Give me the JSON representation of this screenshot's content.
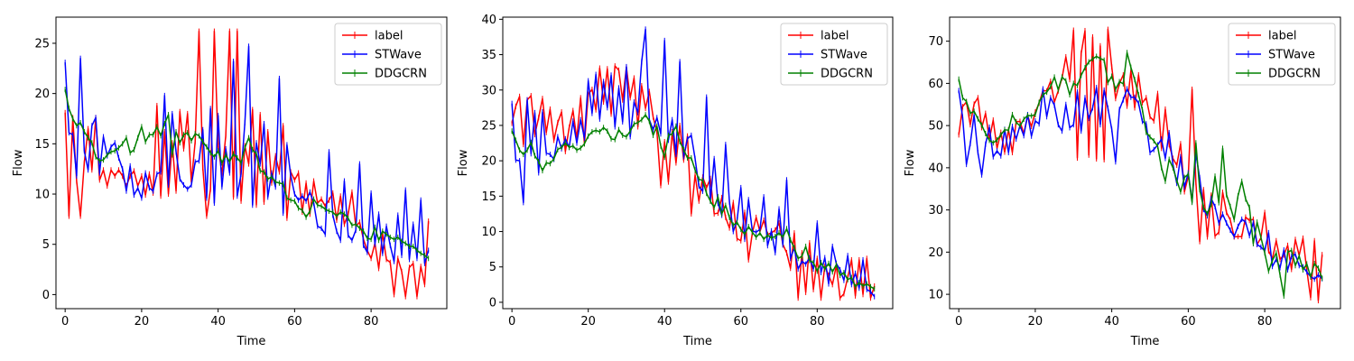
{
  "chart_data": [
    {
      "type": "line",
      "xlabel": "Time",
      "ylabel": "Flow",
      "xlim": [
        -2.4,
        99.8
      ],
      "ylim": [
        -1.4,
        27.6
      ],
      "xticks": [
        0,
        20,
        40,
        60,
        80
      ],
      "yticks": [
        0,
        5,
        10,
        15,
        20,
        25
      ],
      "legend": "top-right",
      "series": [
        {
          "name": "label",
          "color": "#ff0000",
          "x_start": 0,
          "values": [
            18.1,
            7.8,
            17.6,
            11.3,
            7.8,
            13.1,
            16.5,
            12.4,
            17.6,
            11.4,
            12.4,
            10.8,
            12.4,
            11.8,
            12.4,
            11.8,
            10.8,
            11.8,
            12.3,
            10.8,
            11.8,
            9.9,
            12.0,
            10.1,
            18.8,
            9.8,
            16.2,
            10.0,
            15.1,
            10.3,
            18.2,
            14.5,
            18.0,
            11.2,
            15.2,
            26.2,
            12.6,
            7.8,
            10.5,
            26.2,
            14.8,
            12.0,
            15.8,
            26.2,
            9.7,
            26.2,
            9.3,
            14.8,
            13.0,
            18.4,
            8.9,
            17.9,
            9.2,
            16.2,
            11.1,
            13.8,
            12.2,
            16.8,
            7.6,
            12.2,
            11.4,
            12.1,
            8.2,
            11.1,
            8.0,
            11.3,
            9.1,
            9.5,
            8.8,
            9.4,
            10.1,
            7.4,
            9.8,
            7.0,
            8.0,
            10.2,
            6.8,
            7.2,
            5.5,
            4.4,
            3.6,
            5.1,
            2.6,
            6.1,
            3.5,
            3.2,
            0.0,
            3.6,
            2.3,
            -0.2,
            2.7,
            3.1,
            -0.2,
            2.8,
            1.0,
            7.3
          ]
        },
        {
          "name": "STWave",
          "color": "#0000ff",
          "x_start": 0,
          "values": [
            23.1,
            16.1,
            15.9,
            11.8,
            23.5,
            14.3,
            12.4,
            16.8,
            17.6,
            12.1,
            15.7,
            13.8,
            14.7,
            15.1,
            13.6,
            12.5,
            10.3,
            12.8,
            9.9,
            10.6,
            9.6,
            12.1,
            10.6,
            10.3,
            12.0,
            12.2,
            19.8,
            10.9,
            18.0,
            14.2,
            11.5,
            10.9,
            10.5,
            10.9,
            13.2,
            13.3,
            16.4,
            9.6,
            18.5,
            9.1,
            17.8,
            10.7,
            14.5,
            12.1,
            23.2,
            9.8,
            12.0,
            17.1,
            24.7,
            8.9,
            15.1,
            13.0,
            17.0,
            9.7,
            12.1,
            10.7,
            21.5,
            8.1,
            14.9,
            11.8,
            10.0,
            9.4,
            9.8,
            9.3,
            10.2,
            9.1,
            6.8,
            6.6,
            6.0,
            14.2,
            7.9,
            6.3,
            5.4,
            11.3,
            5.9,
            5.4,
            6.4,
            13.0,
            4.9,
            4.2,
            10.1,
            5.0,
            8.0,
            4.1,
            6.8,
            4.9,
            3.3,
            7.9,
            3.9,
            10.4,
            3.5,
            7.0,
            3.6,
            9.4,
            3.1,
            4.4
          ]
        },
        {
          "name": "DDGCRN",
          "color": "#008000",
          "x_start": 0,
          "values": [
            20.4,
            18.5,
            17.5,
            16.8,
            17.1,
            16.2,
            15.6,
            15.1,
            13.7,
            13.3,
            13.4,
            13.9,
            14.2,
            14.3,
            14.6,
            15.0,
            15.6,
            14.1,
            14.4,
            15.6,
            16.7,
            15.2,
            15.9,
            15.9,
            16.7,
            15.8,
            17.0,
            17.9,
            13.9,
            16.2,
            15.1,
            15.9,
            16.1,
            15.3,
            16.0,
            15.8,
            15.2,
            14.7,
            14.1,
            13.7,
            14.3,
            13.1,
            13.9,
            13.2,
            14.0,
            13.6,
            13.1,
            14.6,
            15.6,
            14.4,
            14.0,
            12.3,
            12.2,
            11.5,
            11.7,
            11.2,
            11.1,
            11.0,
            9.6,
            9.4,
            9.3,
            8.6,
            8.4,
            7.7,
            8.3,
            9.5,
            8.9,
            8.8,
            8.5,
            8.3,
            8.2,
            7.8,
            8.2,
            8.0,
            7.6,
            6.9,
            7.0,
            6.6,
            6.3,
            5.6,
            5.5,
            6.7,
            5.4,
            6.3,
            6.0,
            5.7,
            5.5,
            5.7,
            5.3,
            5.1,
            4.8,
            4.8,
            4.4,
            4.1,
            3.9,
            3.6
          ]
        }
      ]
    },
    {
      "type": "line",
      "xlabel": "Time",
      "ylabel": "Flow",
      "xlim": [
        -2.4,
        99.8
      ],
      "ylim": [
        -0.9,
        40.3
      ],
      "xticks": [
        0,
        20,
        40,
        60,
        80
      ],
      "yticks": [
        0,
        5,
        10,
        15,
        20,
        25,
        30,
        35,
        40
      ],
      "legend": "top-right",
      "series": [
        {
          "name": "label",
          "color": "#ff0000",
          "x_start": 0,
          "values": [
            25.3,
            27.7,
            29.1,
            22.3,
            28.6,
            29.2,
            23.7,
            26.1,
            28.8,
            24.0,
            27.3,
            22.9,
            25.4,
            26.9,
            21.3,
            24.7,
            27.1,
            23.1,
            28.9,
            22.4,
            29.4,
            30.1,
            27.2,
            33.1,
            28.3,
            33.0,
            26.6,
            33.4,
            32.8,
            28.6,
            33.2,
            28.9,
            31.7,
            24.8,
            30.6,
            27.4,
            29.8,
            26.2,
            24.1,
            16.5,
            22.7,
            17.0,
            24.1,
            19.7,
            25.0,
            20.1,
            23.5,
            12.5,
            18.0,
            14.3,
            17.7,
            16.2,
            17.5,
            12.5,
            12.6,
            14.8,
            12.0,
            10.5,
            14.1,
            9.0,
            8.7,
            12.7,
            6.0,
            9.8,
            12.0,
            10.0,
            11.6,
            9.6,
            9.8,
            10.2,
            11.2,
            8.2,
            7.0,
            4.8,
            9.8,
            0.6,
            7.0,
            1.4,
            8.4,
            1.8,
            6.2,
            0.6,
            5.1,
            3.8,
            2.5,
            5.2,
            0.6,
            1.2,
            3.5,
            6.0,
            0.9,
            6.0,
            1.1,
            6.2,
            0.6,
            2.3
          ]
        },
        {
          "name": "STWave",
          "color": "#0000ff",
          "x_start": 0,
          "values": [
            28.1,
            20.1,
            20.0,
            14.1,
            28.6,
            21.0,
            26.8,
            18.3,
            26.9,
            21.1,
            20.9,
            20.2,
            23.4,
            21.7,
            23.1,
            21.9,
            25.6,
            22.5,
            25.8,
            23.2,
            31.3,
            26.7,
            32.2,
            25.9,
            31.2,
            27.5,
            32.1,
            24.8,
            30.3,
            25.5,
            33.3,
            23.4,
            28.3,
            26.8,
            34.0,
            38.6,
            25.8,
            24.4,
            26.1,
            23.8,
            37.0,
            22.9,
            25.8,
            20.9,
            34.0,
            20.6,
            23.1,
            23.6,
            20.3,
            16.4,
            15.7,
            29.0,
            14.3,
            20.3,
            14.0,
            12.3,
            22.3,
            14.2,
            10.0,
            11.6,
            16.2,
            8.9,
            14.5,
            10.1,
            9.9,
            10.3,
            14.9,
            8.0,
            10.1,
            7.0,
            13.2,
            8.1,
            17.3,
            6.2,
            7.7,
            4.7,
            5.8,
            5.4,
            6.3,
            4.7,
            11.2,
            4.2,
            6.3,
            2.6,
            7.9,
            5.5,
            4.6,
            3.1,
            6.6,
            2.5,
            4.1,
            2.0,
            6.0,
            1.8,
            1.5,
            0.8
          ]
        },
        {
          "name": "DDGCRN",
          "color": "#008000",
          "x_start": 0,
          "values": [
            24.2,
            22.9,
            21.5,
            20.9,
            21.5,
            22.6,
            20.7,
            19.9,
            18.6,
            19.7,
            19.6,
            20.3,
            21.6,
            21.9,
            22.5,
            21.9,
            22.1,
            21.5,
            21.8,
            22.4,
            23.5,
            24.1,
            24.3,
            24.1,
            24.7,
            24.2,
            23.1,
            23.0,
            24.4,
            23.6,
            23.4,
            24.2,
            25.2,
            25.4,
            25.8,
            26.5,
            25.6,
            23.6,
            24.9,
            22.1,
            20.5,
            23.6,
            23.8,
            24.9,
            22.7,
            21.6,
            20.4,
            20.4,
            18.7,
            17.4,
            17.2,
            15.4,
            14.3,
            13.4,
            14.9,
            12.5,
            13.7,
            12.0,
            10.9,
            11.3,
            10.3,
            9.6,
            10.7,
            9.9,
            9.2,
            9.8,
            8.9,
            9.5,
            9.1,
            9.3,
            9.8,
            9.2,
            10.4,
            8.8,
            7.7,
            6.2,
            6.5,
            7.9,
            5.9,
            5.6,
            4.4,
            5.6,
            4.7,
            5.5,
            4.3,
            5.3,
            3.8,
            4.2,
            3.2,
            3.5,
            2.2,
            2.8,
            2.3,
            2.6,
            2.2,
            1.9
          ]
        }
      ]
    },
    {
      "type": "line",
      "xlabel": "Time",
      "ylabel": "Flow",
      "xlim": [
        -2.4,
        99.8
      ],
      "ylim": [
        6.6,
        75.7
      ],
      "xticks": [
        0,
        20,
        40,
        60,
        80
      ],
      "yticks": [
        10,
        20,
        30,
        40,
        50,
        60,
        70
      ],
      "legend": "top-right",
      "series": [
        {
          "name": "label",
          "color": "#ff0000",
          "x_start": 0,
          "values": [
            47.8,
            54.5,
            55.6,
            50.2,
            55.1,
            56.6,
            49.5,
            52.9,
            46.8,
            51.3,
            44.6,
            48.4,
            43.7,
            49.0,
            43.6,
            50.9,
            51.0,
            48.1,
            52.3,
            49.8,
            53.2,
            55.3,
            58.3,
            58.2,
            60.5,
            55.6,
            58.2,
            61.3,
            66.3,
            60.9,
            72.6,
            42.3,
            67.1,
            72.5,
            43.0,
            71.0,
            42.1,
            68.9,
            41.9,
            72.8,
            63.9,
            56.4,
            60.0,
            62.0,
            54.6,
            63.0,
            54.2,
            62.0,
            55.4,
            56.6,
            52.1,
            51.1,
            57.6,
            44.6,
            53.9,
            45.5,
            42.2,
            40.6,
            45.7,
            34.3,
            37.9,
            58.6,
            36.5,
            22.5,
            34.8,
            23.6,
            33.5,
            23.8,
            24.7,
            34.2,
            29.4,
            27.6,
            23.6,
            23.7,
            23.7,
            28.3,
            27.5,
            27.8,
            21.8,
            23.4,
            29.4,
            20.3,
            18.4,
            22.7,
            18.3,
            19.3,
            21.6,
            15.9,
            23.0,
            19.2,
            23.3,
            15.7,
            9.2,
            22.7,
            8.5,
            19.4
          ]
        },
        {
          "name": "STWave",
          "color": "#0000ff",
          "x_start": 0,
          "values": [
            58.3,
            52.0,
            40.8,
            45.7,
            52.5,
            43.6,
            38.3,
            45.6,
            49.6,
            42.6,
            44.0,
            42.8,
            49.1,
            43.6,
            49.8,
            46.8,
            50.0,
            47.6,
            52.6,
            47.5,
            51.1,
            50.4,
            58.7,
            52.1,
            56.6,
            54.8,
            50.2,
            48.7,
            55.0,
            49.5,
            50.2,
            58.0,
            48.7,
            56.6,
            51.7,
            54.2,
            59.0,
            50.2,
            58.4,
            54.1,
            49.1,
            41.4,
            53.8,
            56.1,
            58.7,
            56.7,
            56.7,
            55.3,
            51.0,
            50.4,
            43.6,
            44.3,
            45.4,
            46.8,
            42.2,
            48.3,
            40.8,
            36.3,
            42.6,
            35.4,
            38.8,
            32.1,
            43.3,
            37.6,
            30.1,
            28.6,
            32.7,
            30.8,
            26.9,
            29.0,
            26.9,
            25.2,
            23.7,
            26.1,
            27.8,
            27.1,
            23.9,
            27.0,
            21.8,
            21.2,
            20.3,
            24.6,
            16.6,
            18.3,
            16.3,
            20.5,
            15.8,
            19.0,
            19.5,
            16.8,
            16.5,
            15.3,
            14.2,
            13.6,
            14.6,
            13.7
          ]
        },
        {
          "name": "DDGCRN",
          "color": "#008000",
          "x_start": 0,
          "values": [
            61.0,
            56.6,
            55.7,
            52.9,
            53.4,
            51.6,
            50.1,
            48.1,
            46.5,
            45.9,
            46.6,
            47.8,
            49.0,
            48.9,
            52.6,
            50.8,
            49.9,
            51.5,
            52.4,
            52.3,
            52.6,
            55.5,
            57.3,
            57.9,
            59.2,
            61.5,
            58.5,
            61.5,
            60.6,
            57.3,
            60.0,
            59.5,
            61.9,
            63.7,
            65.1,
            65.8,
            66.4,
            65.9,
            65.5,
            60.2,
            61.7,
            58.6,
            60.4,
            59.9,
            67.3,
            63.8,
            60.9,
            57.3,
            53.8,
            48.4,
            47.3,
            46.4,
            45.1,
            40.0,
            36.8,
            42.0,
            40.0,
            37.0,
            34.3,
            37.7,
            38.5,
            31.8,
            45.9,
            34.8,
            30.6,
            29.1,
            31.3,
            38.0,
            31.7,
            44.6,
            33.6,
            30.8,
            27.7,
            33.3,
            36.8,
            32.6,
            30.6,
            22.0,
            27.1,
            23.5,
            19.8,
            15.5,
            18.0,
            19.8,
            14.6,
            9.6,
            20.0,
            20.4,
            16.8,
            19.1,
            15.8,
            17.2,
            14.1,
            17.3,
            16.2,
            13.8
          ]
        }
      ]
    }
  ]
}
